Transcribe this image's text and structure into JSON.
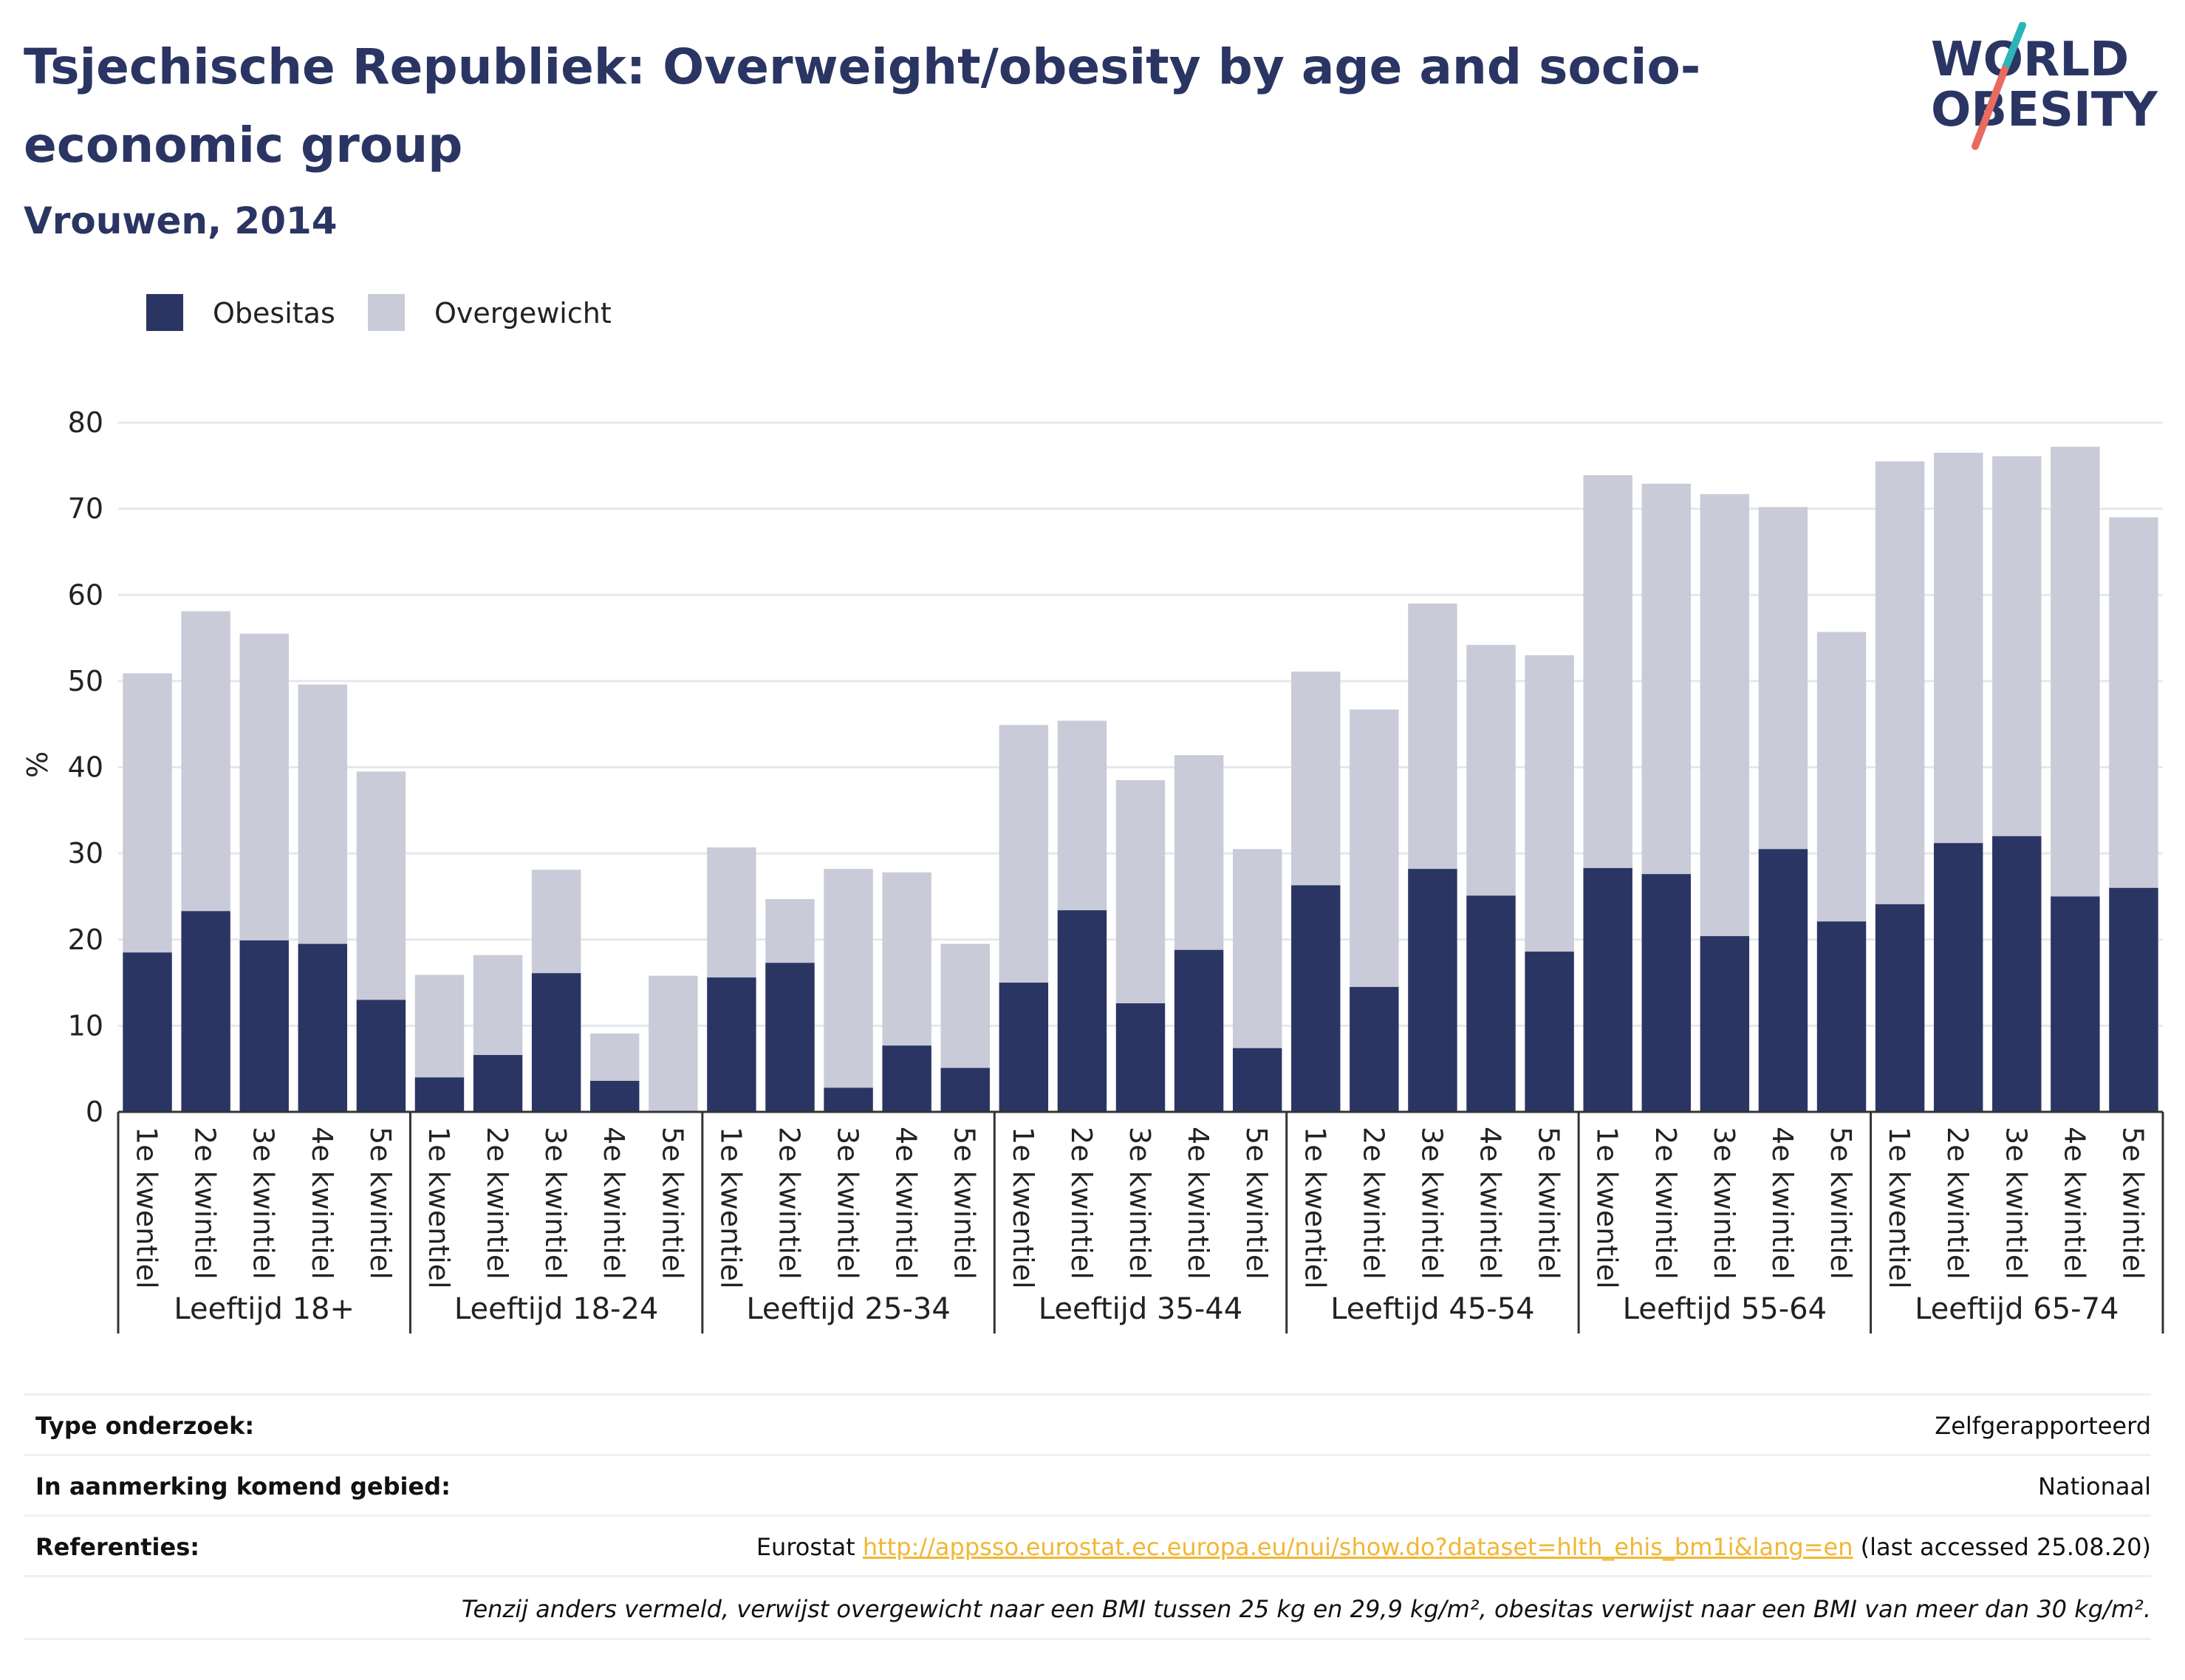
{
  "title": "Tsjechische Republiek: Overweight/obesity by age and socio-economic group",
  "subtitle": "Vrouwen, 2014",
  "logo": {
    "line1": "WORLD",
    "line2": "OBESITY"
  },
  "colors": {
    "obesitas": "#2a3563",
    "overgewicht": "#c9cbd8",
    "title": "#2a3563",
    "link": "#f1b634",
    "logo_teal": "#2bb5b8",
    "logo_red": "#e86b5f"
  },
  "legend": [
    {
      "label": "Obesitas",
      "color": "#2a3563"
    },
    {
      "label": "Overgewicht",
      "color": "#c9cbd8"
    }
  ],
  "chart_data": {
    "type": "bar",
    "stacked": true,
    "ylabel": "%",
    "ylim": [
      0,
      80
    ],
    "yticks": [
      0,
      10,
      20,
      30,
      40,
      50,
      60,
      70,
      80
    ],
    "grid": true,
    "legend_position": "top-left",
    "groups": [
      "Leeftijd 18+",
      "Leeftijd 18-24",
      "Leeftijd 25-34",
      "Leeftijd 35-44",
      "Leeftijd 45-54",
      "Leeftijd 55-64",
      "Leeftijd 65-74"
    ],
    "categories": [
      "1e kwentiel",
      "2e kwintiel",
      "3e kwintiel",
      "4e kwintiel",
      "5e kwintiel"
    ],
    "series": [
      {
        "name": "Obesitas",
        "values": [
          [
            18.5,
            23.3,
            19.9,
            19.5,
            13.0
          ],
          [
            4.0,
            6.6,
            16.1,
            3.6,
            0
          ],
          [
            15.6,
            17.3,
            2.8,
            7.7,
            5.1
          ],
          [
            15.0,
            23.4,
            12.6,
            18.8,
            7.4
          ],
          [
            26.3,
            14.5,
            28.2,
            25.1,
            18.6
          ],
          [
            28.3,
            27.6,
            20.4,
            30.5,
            22.1
          ],
          [
            24.1,
            31.2,
            32.0,
            25.0,
            26.0
          ]
        ]
      },
      {
        "name": "Overgewicht",
        "values": [
          [
            32.4,
            34.8,
            35.6,
            30.1,
            26.5
          ],
          [
            11.9,
            11.6,
            12.0,
            5.5,
            15.8
          ],
          [
            15.1,
            7.4,
            25.4,
            20.1,
            14.4
          ],
          [
            29.9,
            22.0,
            25.9,
            22.6,
            23.1
          ],
          [
            24.8,
            32.2,
            30.8,
            29.1,
            34.4
          ],
          [
            45.6,
            45.3,
            51.3,
            39.7,
            33.6
          ],
          [
            51.4,
            45.3,
            44.1,
            52.2,
            43.0
          ]
        ]
      }
    ]
  },
  "info": {
    "rows": [
      {
        "key": "Type onderzoek:",
        "value": "Zelfgerapporteerd"
      },
      {
        "key": "In aanmerking komend gebied:",
        "value": "Nationaal"
      }
    ],
    "references": {
      "key": "Referenties:",
      "prefix": "Eurostat",
      "link": "http://appsso.eurostat.ec.europa.eu/nui/show.do?dataset=hlth_ehis_bm1i&lang=en",
      "suffix": "(last accessed 25.08.20)"
    },
    "note": "Tenzij anders vermeld, verwijst overgewicht naar een BMI tussen 25 kg en 29,9 kg/m², obesitas verwijst naar een BMI van meer dan 30 kg/m²."
  }
}
